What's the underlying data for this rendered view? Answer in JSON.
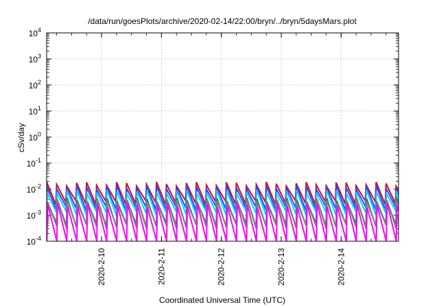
{
  "chart_data": {
    "type": "line",
    "title": "/data/run/goesPlots/archive/2020-02-14/22:00/bryn/../bryn/5daysMars.plot",
    "xlabel": "Coordinated Universal Time (UTC)",
    "ylabel": "cSv/day",
    "yscale": "log",
    "ylim_exponents": [
      -4,
      4
    ],
    "y_tick_labels": [
      {
        "base": "10",
        "exp": "4"
      },
      {
        "base": "10",
        "exp": "3"
      },
      {
        "base": "10",
        "exp": "2"
      },
      {
        "base": "10",
        "exp": "1"
      },
      {
        "base": "10",
        "exp": "0"
      },
      {
        "base": "10",
        "exp": "-1"
      },
      {
        "base": "10",
        "exp": "-2"
      },
      {
        "base": "10",
        "exp": "-3"
      },
      {
        "base": "10",
        "exp": "-4"
      }
    ],
    "x_range": [
      "2020-02-09T02:00",
      "2020-02-14T23:00"
    ],
    "x_ticks": [
      "2020-2-10",
      "2020-2-11",
      "2020-2-12",
      "2020-2-13",
      "2020-2-14"
    ],
    "grid": true,
    "sawtooth_period_hours": 4,
    "series": [
      {
        "color": "#e0001a",
        "peak": 0.016,
        "trough": 0.003
      },
      {
        "color": "#1a50ff",
        "peak": 0.012,
        "trough": 0.0018
      },
      {
        "color": "#18c8ff",
        "peak": 0.008,
        "trough": 0.0012
      },
      {
        "color": "#2a7a6a",
        "peak": 0.004,
        "trough": 0.0004
      },
      {
        "color": "#808080",
        "peak": 0.0035,
        "trough": 0.00035
      },
      {
        "color": "#ff00ff",
        "peak": 0.0025,
        "trough": 8e-05
      }
    ]
  }
}
